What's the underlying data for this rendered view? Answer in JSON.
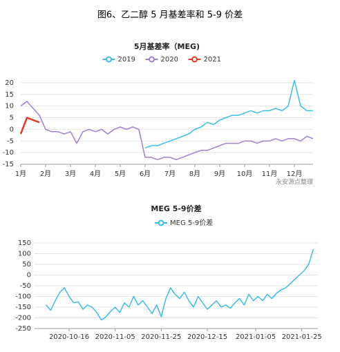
{
  "caption": "图6、乙二醇 5 月基差率和 5-9 价差",
  "chart_data": [
    {
      "type": "line",
      "title": "5月基差率（MEG)",
      "source": "永安源点整理",
      "categories": [
        "1月",
        null,
        null,
        null,
        "2月",
        null,
        null,
        null,
        "3月",
        null,
        null,
        null,
        "4月",
        null,
        null,
        null,
        "5月",
        null,
        null,
        null,
        "6月",
        null,
        null,
        null,
        "7月",
        null,
        null,
        null,
        "8月",
        null,
        null,
        null,
        "9月",
        null,
        null,
        null,
        "10月",
        null,
        null,
        null,
        "11月",
        null,
        null,
        null,
        "12月",
        null,
        null,
        null
      ],
      "series": [
        {
          "name": "2019",
          "color": "#3cbde6",
          "values": [
            null,
            null,
            null,
            null,
            null,
            null,
            null,
            null,
            null,
            null,
            null,
            null,
            null,
            null,
            null,
            null,
            null,
            null,
            null,
            null,
            -8,
            -7,
            -7,
            -6,
            -5,
            -4,
            -3,
            -2,
            0,
            1,
            3,
            2,
            4,
            5,
            6,
            6,
            7,
            8,
            7,
            8,
            8,
            9,
            8,
            10,
            21,
            10,
            8,
            8
          ]
        },
        {
          "name": "2020",
          "color": "#a07fd0",
          "values": [
            10,
            12,
            9,
            6,
            0,
            -1,
            -1,
            -2,
            -1,
            -6,
            -1,
            0,
            -1,
            0,
            -2,
            0,
            1,
            0,
            1,
            0,
            -12,
            -12,
            -13,
            -12,
            -12,
            -13,
            -12,
            -11,
            -10,
            -9,
            -9,
            -8,
            -7,
            -6,
            -6,
            -6,
            -5,
            -5,
            -6,
            -5,
            -5,
            -4,
            -5,
            -4,
            -4,
            -5,
            -3,
            -4
          ]
        },
        {
          "name": "2021",
          "color": "#e03a2a",
          "values": [
            -2,
            5,
            4,
            3,
            null,
            null,
            null,
            null,
            null,
            null,
            null,
            null,
            null,
            null,
            null,
            null,
            null,
            null,
            null,
            null,
            null,
            null,
            null,
            null,
            null,
            null,
            null,
            null,
            null,
            null,
            null,
            null,
            null,
            null,
            null,
            null,
            null,
            null,
            null,
            null,
            null,
            null,
            null,
            null,
            null,
            null,
            null,
            null
          ]
        }
      ],
      "ylim": [
        -15,
        25
      ],
      "yticks": [
        20,
        15,
        10,
        5,
        0,
        -5,
        -10,
        -15
      ],
      "grid": true
    },
    {
      "type": "line",
      "title": "MEG 5-9价差",
      "x": [
        "2020-10-06",
        "2020-10-08",
        "2020-10-10",
        "2020-10-12",
        "2020-10-14",
        "2020-10-16",
        "2020-10-18",
        "2020-10-20",
        "2020-10-22",
        "2020-10-24",
        "2020-10-26",
        "2020-10-28",
        "2020-10-30",
        "2020-11-01",
        "2020-11-03",
        "2020-11-05",
        "2020-11-07",
        "2020-11-09",
        "2020-11-11",
        "2020-11-13",
        "2020-11-15",
        "2020-11-17",
        "2020-11-19",
        "2020-11-21",
        "2020-11-23",
        "2020-11-25",
        "2020-11-27",
        "2020-11-29",
        "2020-12-01",
        "2020-12-03",
        "2020-12-05",
        "2020-12-07",
        "2020-12-09",
        "2020-12-11",
        "2020-12-13",
        "2020-12-15",
        "2020-12-17",
        "2020-12-19",
        "2020-12-21",
        "2020-12-23",
        "2020-12-25",
        "2020-12-27",
        "2020-12-29",
        "2020-12-31",
        "2021-01-02",
        "2021-01-04",
        "2021-01-06",
        "2021-01-08",
        "2021-01-10",
        "2021-01-12",
        "2021-01-14",
        "2021-01-16",
        "2021-01-18",
        "2021-01-20",
        "2021-01-22",
        "2021-01-24",
        "2021-01-26",
        "2021-01-28",
        "2021-01-30"
      ],
      "series": [
        {
          "name": "MEG 5-9价差",
          "color": "#3cbde6",
          "values": [
            -140,
            -165,
            -120,
            -80,
            -60,
            -100,
            -130,
            -125,
            -160,
            -140,
            -150,
            -175,
            -210,
            -195,
            -170,
            -150,
            -175,
            -130,
            -150,
            -100,
            -140,
            -120,
            -150,
            -180,
            -140,
            -195,
            -110,
            -60,
            -90,
            -110,
            -80,
            -120,
            -150,
            -100,
            -130,
            -160,
            -140,
            -120,
            -150,
            -140,
            -155,
            -130,
            -110,
            -140,
            -90,
            -120,
            -100,
            -120,
            -90,
            -110,
            -85,
            -70,
            -60,
            -40,
            -20,
            0,
            20,
            50,
            120
          ]
        }
      ],
      "xlim": [
        "2020-10-01",
        "2021-02-01"
      ],
      "xticks": [
        "2020-10-16",
        "2020-11-05",
        "2020-11-25",
        "2020-12-15",
        "2021-01-05",
        "2021-01-25"
      ],
      "ylim": [
        -250,
        150
      ],
      "yticks": [
        150,
        100,
        50,
        0,
        -50,
        -100,
        -150,
        -200,
        -250
      ],
      "grid": true
    }
  ]
}
